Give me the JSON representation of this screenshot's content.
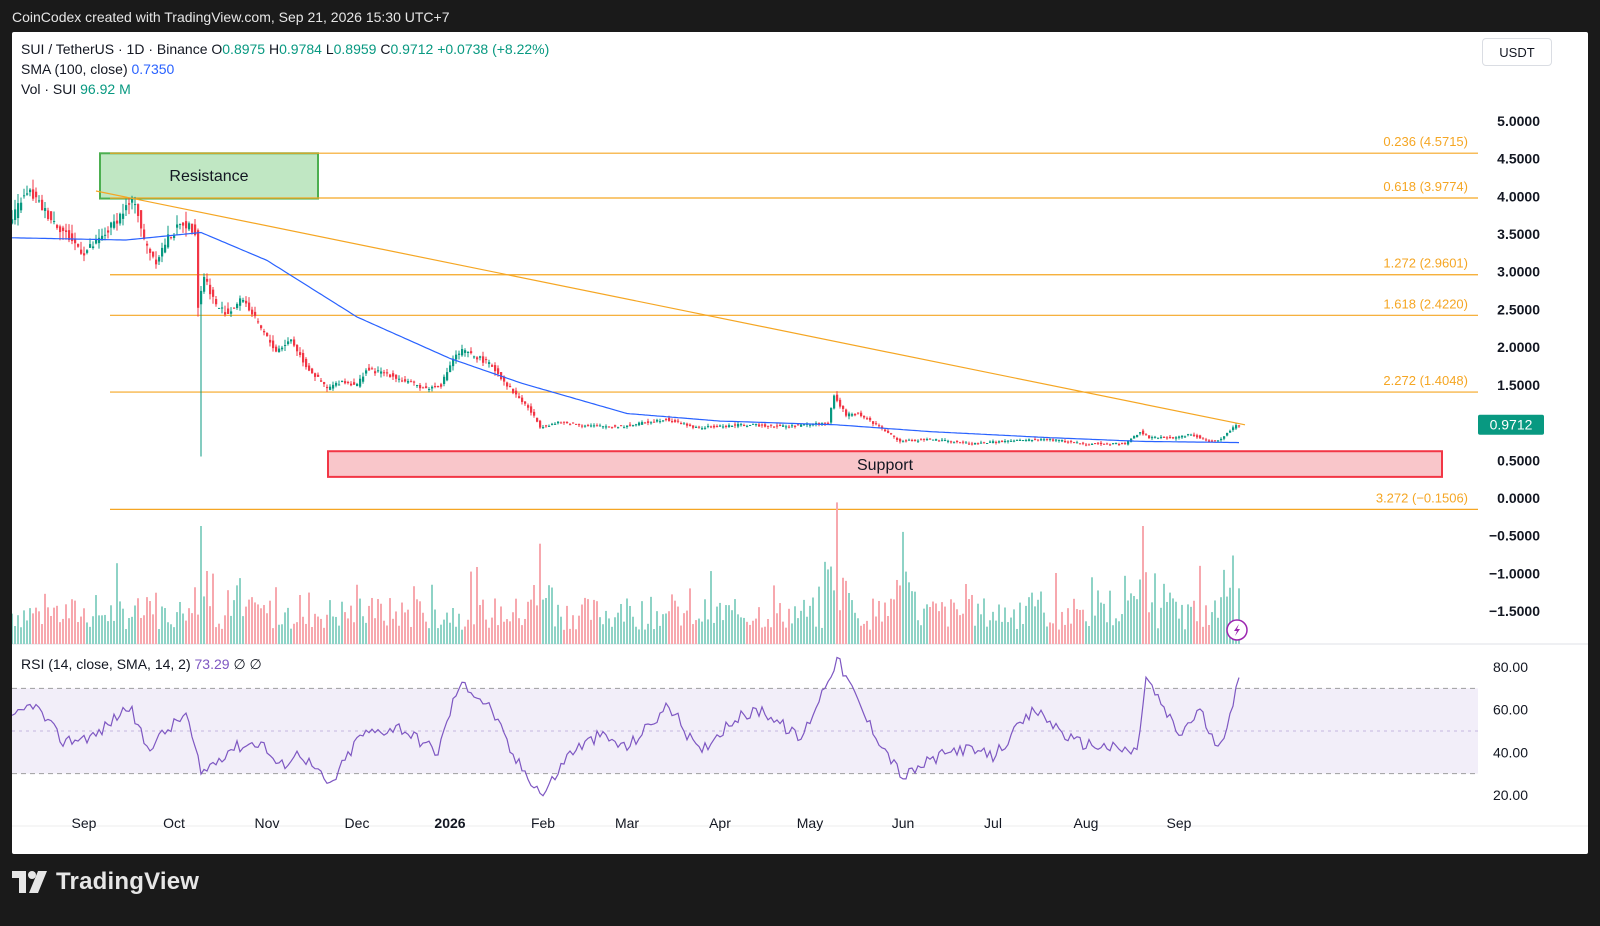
{
  "header": {
    "caption": "CoinCodex created with TradingView.com, Sep 21, 2026 15:30 UTC+7"
  },
  "legend": {
    "symbol": "SUI / TetherUS · 1D · Binance",
    "open_label": "O",
    "open": "0.8975",
    "high_label": "H",
    "high": "0.9784",
    "low_label": "L",
    "low": "0.8959",
    "close_label": "C",
    "close": "0.9712",
    "change": "+0.0738 (+8.22%)",
    "sma_label": "SMA (100, close)",
    "sma_value": "0.7350",
    "vol_label": "Vol · SUI",
    "vol_value": "96.92 M",
    "rsi_label": "RSI (14, close, SMA, 14, 2)",
    "rsi_value": "73.29",
    "rsi_extra": "∅ ∅"
  },
  "currency": "USDT",
  "footer": {
    "brand": "TradingView",
    "logo_icon": "tradingview-logo-icon"
  },
  "colors": {
    "up": "#089981",
    "down": "#f23645",
    "sma": "#2962ff",
    "fib": "#f5a623",
    "rsi": "#7e57c2",
    "resistance": "#4caf50",
    "support": "#f23645"
  },
  "chart_data": {
    "type": "candlestick",
    "x_axis_ticks": [
      "Sep",
      "Oct",
      "Nov",
      "Dec",
      "2026",
      "Feb",
      "Mar",
      "Apr",
      "May",
      "Jun",
      "Jul",
      "Aug",
      "Sep"
    ],
    "price_axis_ticks": [
      "5.0000",
      "4.5000",
      "4.0000",
      "3.5000",
      "3.0000",
      "2.5000",
      "2.0000",
      "1.5000",
      "1.0000",
      "0.5000",
      "0.0000",
      "−0.5000",
      "−1.0000",
      "−1.5000"
    ],
    "ylim": [
      -1.75,
      5.25
    ],
    "current_price_label": "0.9712",
    "fib_levels": [
      {
        "label": "0.236 (4.5715)",
        "value": 4.5715
      },
      {
        "label": "0.618 (3.9774)",
        "value": 3.9774
      },
      {
        "label": "1.272 (2.9601)",
        "value": 2.9601
      },
      {
        "label": "1.618 (2.4220)",
        "value": 2.422
      },
      {
        "label": "2.272 (1.4048)",
        "value": 1.4048
      },
      {
        "label": "3.272 (−0.1506)",
        "value": -0.1506
      }
    ],
    "resistance_zone": {
      "label": "Resistance",
      "top": 4.57,
      "bottom": 3.97,
      "x_start": "Aug 29",
      "x_end": "Oct 30"
    },
    "support_zone": {
      "label": "Support",
      "top": 0.62,
      "bottom": 0.28,
      "x_start": "Nov 3",
      "x_end": "Sep 18"
    },
    "trendline": {
      "start": {
        "x": "Sep 5",
        "y": 4.07
      },
      "end": {
        "x": "Sep 21",
        "y": 0.97
      }
    },
    "price_anchors": [
      {
        "x": "Aug 8",
        "y": 3.6
      },
      {
        "x": "Aug 12",
        "y": 3.95
      },
      {
        "x": "Aug 15",
        "y": 4.05
      },
      {
        "x": "Aug 20",
        "y": 3.8
      },
      {
        "x": "Aug 28",
        "y": 3.45
      },
      {
        "x": "Sep 2",
        "y": 3.25
      },
      {
        "x": "Sep 8",
        "y": 3.45
      },
      {
        "x": "Sep 16",
        "y": 3.85
      },
      {
        "x": "Sep 19",
        "y": 3.95
      },
      {
        "x": "Sep 22",
        "y": 3.4
      },
      {
        "x": "Sep 26",
        "y": 3.15
      },
      {
        "x": "Sep 30",
        "y": 3.45
      },
      {
        "x": "Oct 5",
        "y": 3.65
      },
      {
        "x": "Oct 9",
        "y": 3.55
      },
      {
        "x": "Oct 10",
        "y": 2.55
      },
      {
        "x": "Oct 12",
        "y": 2.95
      },
      {
        "x": "Oct 16",
        "y": 2.55
      },
      {
        "x": "Oct 20",
        "y": 2.45
      },
      {
        "x": "Oct 25",
        "y": 2.65
      },
      {
        "x": "Oct 30",
        "y": 2.3
      },
      {
        "x": "Nov 5",
        "y": 1.95
      },
      {
        "x": "Nov 10",
        "y": 2.1
      },
      {
        "x": "Nov 15",
        "y": 1.75
      },
      {
        "x": "Nov 22",
        "y": 1.45
      },
      {
        "x": "Nov 27",
        "y": 1.55
      },
      {
        "x": "Dec 2",
        "y": 1.5
      },
      {
        "x": "Dec 5",
        "y": 1.7
      },
      {
        "x": "Dec 12",
        "y": 1.65
      },
      {
        "x": "Dec 18",
        "y": 1.55
      },
      {
        "x": "Dec 25",
        "y": 1.45
      },
      {
        "x": "Dec 30",
        "y": 1.5
      },
      {
        "x": "Jan 3",
        "y": 1.85
      },
      {
        "x": "Jan 6",
        "y": 1.95
      },
      {
        "x": "Jan 12",
        "y": 1.85
      },
      {
        "x": "Jan 16",
        "y": 1.75
      },
      {
        "x": "Jan 22",
        "y": 1.45
      },
      {
        "x": "Jan 28",
        "y": 1.2
      },
      {
        "x": "Feb 1",
        "y": 0.95
      },
      {
        "x": "Feb 8",
        "y": 1.0
      },
      {
        "x": "Feb 20",
        "y": 0.95
      },
      {
        "x": "Mar 1",
        "y": 0.95
      },
      {
        "x": "Mar 15",
        "y": 1.05
      },
      {
        "x": "Mar 25",
        "y": 0.93
      },
      {
        "x": "Apr 10",
        "y": 0.97
      },
      {
        "x": "Apr 25",
        "y": 0.95
      },
      {
        "x": "May 8",
        "y": 1.0
      },
      {
        "x": "May 10",
        "y": 1.35
      },
      {
        "x": "May 14",
        "y": 1.1
      },
      {
        "x": "May 18",
        "y": 1.12
      },
      {
        "x": "May 25",
        "y": 0.95
      },
      {
        "x": "Jun 1",
        "y": 0.75
      },
      {
        "x": "Jun 10",
        "y": 0.78
      },
      {
        "x": "Jun 25",
        "y": 0.72
      },
      {
        "x": "Jul 5",
        "y": 0.75
      },
      {
        "x": "Jul 20",
        "y": 0.78
      },
      {
        "x": "Aug 1",
        "y": 0.72
      },
      {
        "x": "Aug 15",
        "y": 0.72
      },
      {
        "x": "Aug 20",
        "y": 0.88
      },
      {
        "x": "Aug 23",
        "y": 0.8
      },
      {
        "x": "Sep 1",
        "y": 0.8
      },
      {
        "x": "Sep 6",
        "y": 0.85
      },
      {
        "x": "Sep 12",
        "y": 0.75
      },
      {
        "x": "Sep 16",
        "y": 0.78
      },
      {
        "x": "Sep 21",
        "y": 0.97
      }
    ],
    "sma_anchors": [
      {
        "x": "Aug 8",
        "y": 3.45
      },
      {
        "x": "Sep 15",
        "y": 3.42
      },
      {
        "x": "Oct 10",
        "y": 3.52
      },
      {
        "x": "Nov 1",
        "y": 3.15
      },
      {
        "x": "Dec 1",
        "y": 2.4
      },
      {
        "x": "Jan 1",
        "y": 1.85
      },
      {
        "x": "Jan 25",
        "y": 1.52
      },
      {
        "x": "Mar 1",
        "y": 1.12
      },
      {
        "x": "Apr 1",
        "y": 1.02
      },
      {
        "x": "May 10",
        "y": 0.97
      },
      {
        "x": "Jun 10",
        "y": 0.88
      },
      {
        "x": "Jul 20",
        "y": 0.8
      },
      {
        "x": "Aug 20",
        "y": 0.75
      },
      {
        "x": "Sep 21",
        "y": 0.735
      }
    ],
    "volume_spikes": [
      {
        "x": "Oct 10",
        "v": 1.0
      },
      {
        "x": "May 10",
        "v": 1.2
      },
      {
        "x": "Jan 31",
        "v": 0.85
      },
      {
        "x": "Jun 1",
        "v": 0.95
      },
      {
        "x": "Aug 20",
        "v": 1.0
      },
      {
        "x": "Sep 19",
        "v": 0.75
      }
    ],
    "rsi": {
      "axis_ticks": [
        "80.00",
        "60.00",
        "40.00",
        "20.00"
      ],
      "ylim": [
        12,
        88
      ],
      "upper_band": 70,
      "lower_band": 30,
      "anchors": [
        {
          "x": "Aug 8",
          "y": 55
        },
        {
          "x": "Aug 15",
          "y": 63
        },
        {
          "x": "Aug 25",
          "y": 45
        },
        {
          "x": "Sep 5",
          "y": 48
        },
        {
          "x": "Sep 16",
          "y": 62
        },
        {
          "x": "Sep 22",
          "y": 42
        },
        {
          "x": "Oct 5",
          "y": 58
        },
        {
          "x": "Oct 10",
          "y": 30
        },
        {
          "x": "Oct 20",
          "y": 42
        },
        {
          "x": "Oct 30",
          "y": 45
        },
        {
          "x": "Nov 5",
          "y": 33
        },
        {
          "x": "Nov 12",
          "y": 40
        },
        {
          "x": "Nov 22",
          "y": 24
        },
        {
          "x": "Dec 2",
          "y": 48
        },
        {
          "x": "Dec 15",
          "y": 52
        },
        {
          "x": "Dec 28",
          "y": 40
        },
        {
          "x": "Jan 3",
          "y": 68
        },
        {
          "x": "Jan 6",
          "y": 72
        },
        {
          "x": "Jan 15",
          "y": 60
        },
        {
          "x": "Jan 22",
          "y": 38
        },
        {
          "x": "Feb 1",
          "y": 20
        },
        {
          "x": "Feb 10",
          "y": 40
        },
        {
          "x": "Feb 20",
          "y": 48
        },
        {
          "x": "Mar 1",
          "y": 42
        },
        {
          "x": "Mar 15",
          "y": 62
        },
        {
          "x": "Mar 25",
          "y": 40
        },
        {
          "x": "Apr 5",
          "y": 55
        },
        {
          "x": "Apr 15",
          "y": 60
        },
        {
          "x": "Apr 28",
          "y": 46
        },
        {
          "x": "May 10",
          "y": 84
        },
        {
          "x": "May 20",
          "y": 55
        },
        {
          "x": "Jun 1",
          "y": 28
        },
        {
          "x": "Jun 10",
          "y": 36
        },
        {
          "x": "Jun 20",
          "y": 42
        },
        {
          "x": "Jul 1",
          "y": 38
        },
        {
          "x": "Jul 15",
          "y": 60
        },
        {
          "x": "Jul 28",
          "y": 45
        },
        {
          "x": "Aug 10",
          "y": 42
        },
        {
          "x": "Aug 18",
          "y": 40
        },
        {
          "x": "Aug 21",
          "y": 75
        },
        {
          "x": "Sep 1",
          "y": 48
        },
        {
          "x": "Sep 8",
          "y": 60
        },
        {
          "x": "Sep 14",
          "y": 40
        },
        {
          "x": "Sep 21",
          "y": 73.29
        }
      ]
    }
  }
}
